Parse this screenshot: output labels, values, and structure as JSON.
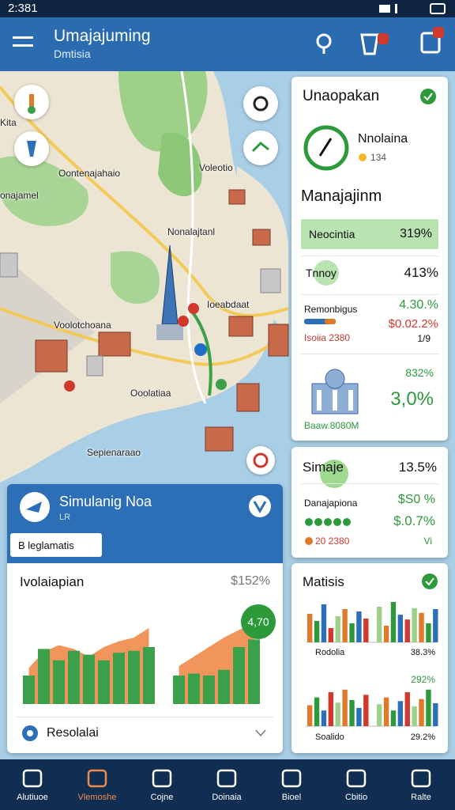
{
  "status": {
    "time": "2:381"
  },
  "header": {
    "title": "Umajajuming",
    "subtitle": "Dmtisia"
  },
  "map": {
    "labels": [
      "Kita",
      "Oontenajahaio",
      "Voleotio",
      "onajamel",
      "Nonalajtanl",
      "Ioeabdaat",
      "Voolotchoana",
      "Ooolatiaa",
      "Sepienaraao"
    ]
  },
  "summary_card": {
    "title": "Unaopakan",
    "gauge_label": "Nnolaina",
    "gauge_value": "134",
    "section_title": "Manajajinm",
    "rows": [
      {
        "label": "Neocintia",
        "value": "319%"
      },
      {
        "label": "Tnnoy",
        "value": "413%"
      },
      {
        "label": "Remonbigus",
        "value": "4.30.%",
        "change": "$0.02.2%",
        "note": "Isoiia 2380",
        "count": "1/9"
      },
      {
        "value": "832%",
        "change": "3,0%",
        "note": "Baaw.8080M"
      }
    ]
  },
  "stats_card": {
    "title": "Simaje",
    "value": "13.5%",
    "label": "Danajapiona",
    "values": [
      "$S0 %",
      "$.0.7%"
    ],
    "note": "20 2380",
    "count": "Vi"
  },
  "analysis_card": {
    "title": "Matisis",
    "colors": [
      "#e07a2b",
      "#2c9a3b",
      "#2d6fb7",
      "#d0392b",
      "#9fd08a"
    ],
    "charts": [
      {
        "label": "Rodolia",
        "value": "38.3%",
        "bars": [
          60,
          45,
          80,
          30,
          55,
          70,
          40,
          65,
          50,
          75,
          35,
          85,
          58,
          48,
          72,
          62,
          40,
          70
        ]
      },
      {
        "label": "Soalido",
        "value": "29.2%",
        "change": "292%",
        "bars": [
          40,
          55,
          30,
          65,
          45,
          70,
          50,
          35,
          60,
          42,
          55,
          30,
          48,
          65,
          38,
          52,
          70,
          44
        ]
      }
    ]
  },
  "simulation_card": {
    "title": "Simulanig Noa",
    "subtitle": "LR",
    "search": "B leglamatis",
    "section_title": "Ivolaiapian",
    "section_value": "$152%",
    "badge": "4,70",
    "footer": "Resolalai",
    "chart": {
      "area": [
        38,
        55,
        62,
        58,
        50,
        60,
        66,
        70,
        80,
        0,
        40,
        50,
        60,
        70,
        78,
        86
      ],
      "bars": [
        30,
        58,
        46,
        56,
        52,
        46,
        54,
        56,
        60,
        0,
        30,
        32,
        30,
        36,
        60,
        68
      ]
    }
  },
  "nav": [
    "Alutiuoe",
    "Vlemoshe",
    "Cojne",
    "Doinaia",
    "Bioel",
    "Cbitio",
    "Ralte"
  ]
}
